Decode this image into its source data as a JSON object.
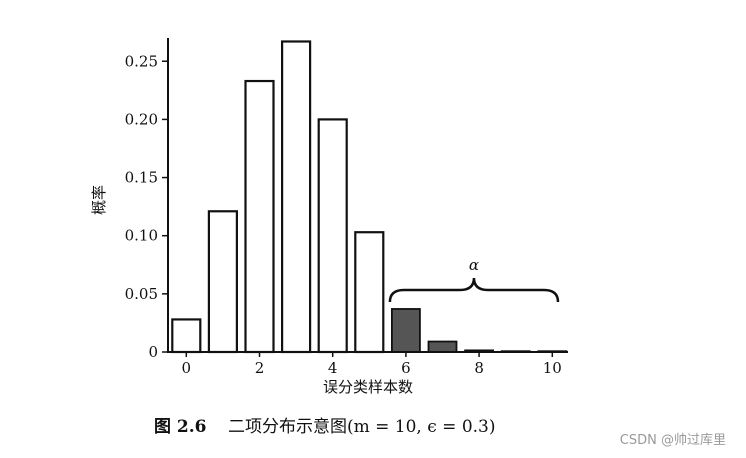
{
  "chart_data": {
    "type": "bar",
    "categories": [
      "0",
      "1",
      "2",
      "3",
      "4",
      "5",
      "6",
      "7",
      "8",
      "9",
      "10"
    ],
    "values": [
      0.028,
      0.121,
      0.233,
      0.267,
      0.2,
      0.103,
      0.037,
      0.009,
      0.0014,
      0.0001,
      1e-05
    ],
    "highlighted_categories_from": 6,
    "colors": {
      "normal_fill": "#ffffff",
      "highlight_fill": "#555555",
      "stroke": "#111111"
    },
    "ylim": [
      0,
      0.27
    ],
    "yticks": [
      0,
      0.05,
      0.1,
      0.15,
      0.2,
      0.25
    ],
    "ytick_labels": [
      "0",
      "0.05",
      "0.10",
      "0.15",
      "0.20",
      "0.25"
    ],
    "xtick_labels": [
      "0",
      "2",
      "4",
      "6",
      "8",
      "10"
    ],
    "xtick_values": [
      0,
      2,
      4,
      6,
      8,
      10
    ],
    "xlabel": "误分类样本数",
    "ylabel": "概率",
    "annotation": "α",
    "grid": false
  },
  "caption": {
    "figure_number": "图 2.6",
    "text": "二项分布示意图(m = 10, ϵ = 0.3)"
  },
  "watermark": "CSDN @帅过库里"
}
